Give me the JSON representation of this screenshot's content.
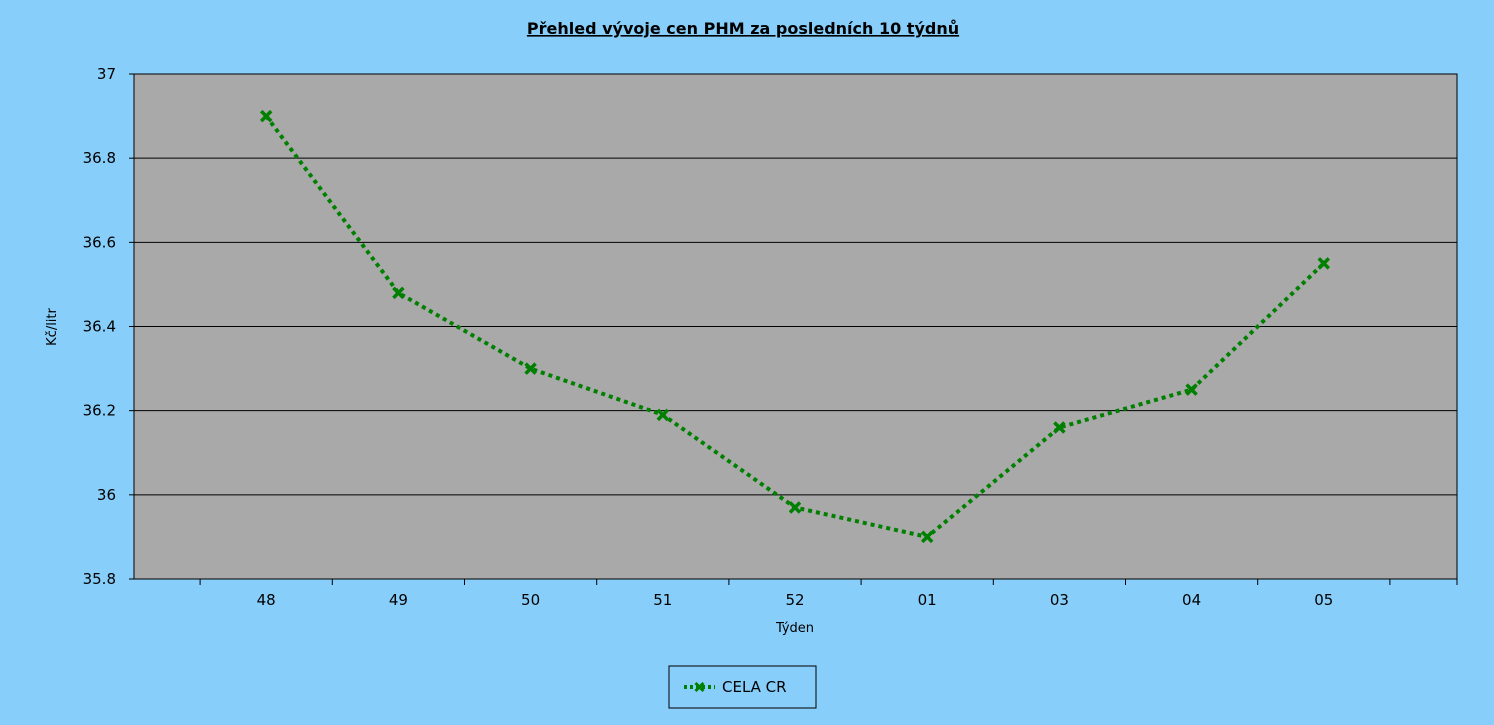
{
  "chart_data": {
    "type": "line",
    "title": "Přehled vývoje cen PHM za posledních 10 týdnů",
    "xlabel": "Týden",
    "ylabel": "Kč/litr",
    "categories": [
      "48",
      "49",
      "50",
      "51",
      "52",
      "01",
      "03",
      "04",
      "05"
    ],
    "series": [
      {
        "name": "CELA CR",
        "values": [
          36.9,
          36.48,
          36.3,
          36.19,
          35.97,
          35.9,
          36.16,
          36.25,
          36.55
        ],
        "color": "#008000",
        "line_style": "dotted",
        "marker": "x"
      }
    ],
    "ylim": [
      35.8,
      37
    ],
    "yticks": [
      "35.8",
      "36",
      "36.2",
      "36.4",
      "36.6",
      "36.8",
      "37"
    ],
    "grid": true,
    "legend_position": "bottom-center",
    "plot_background": "#a9a9a9",
    "page_background": "#87cefa"
  }
}
